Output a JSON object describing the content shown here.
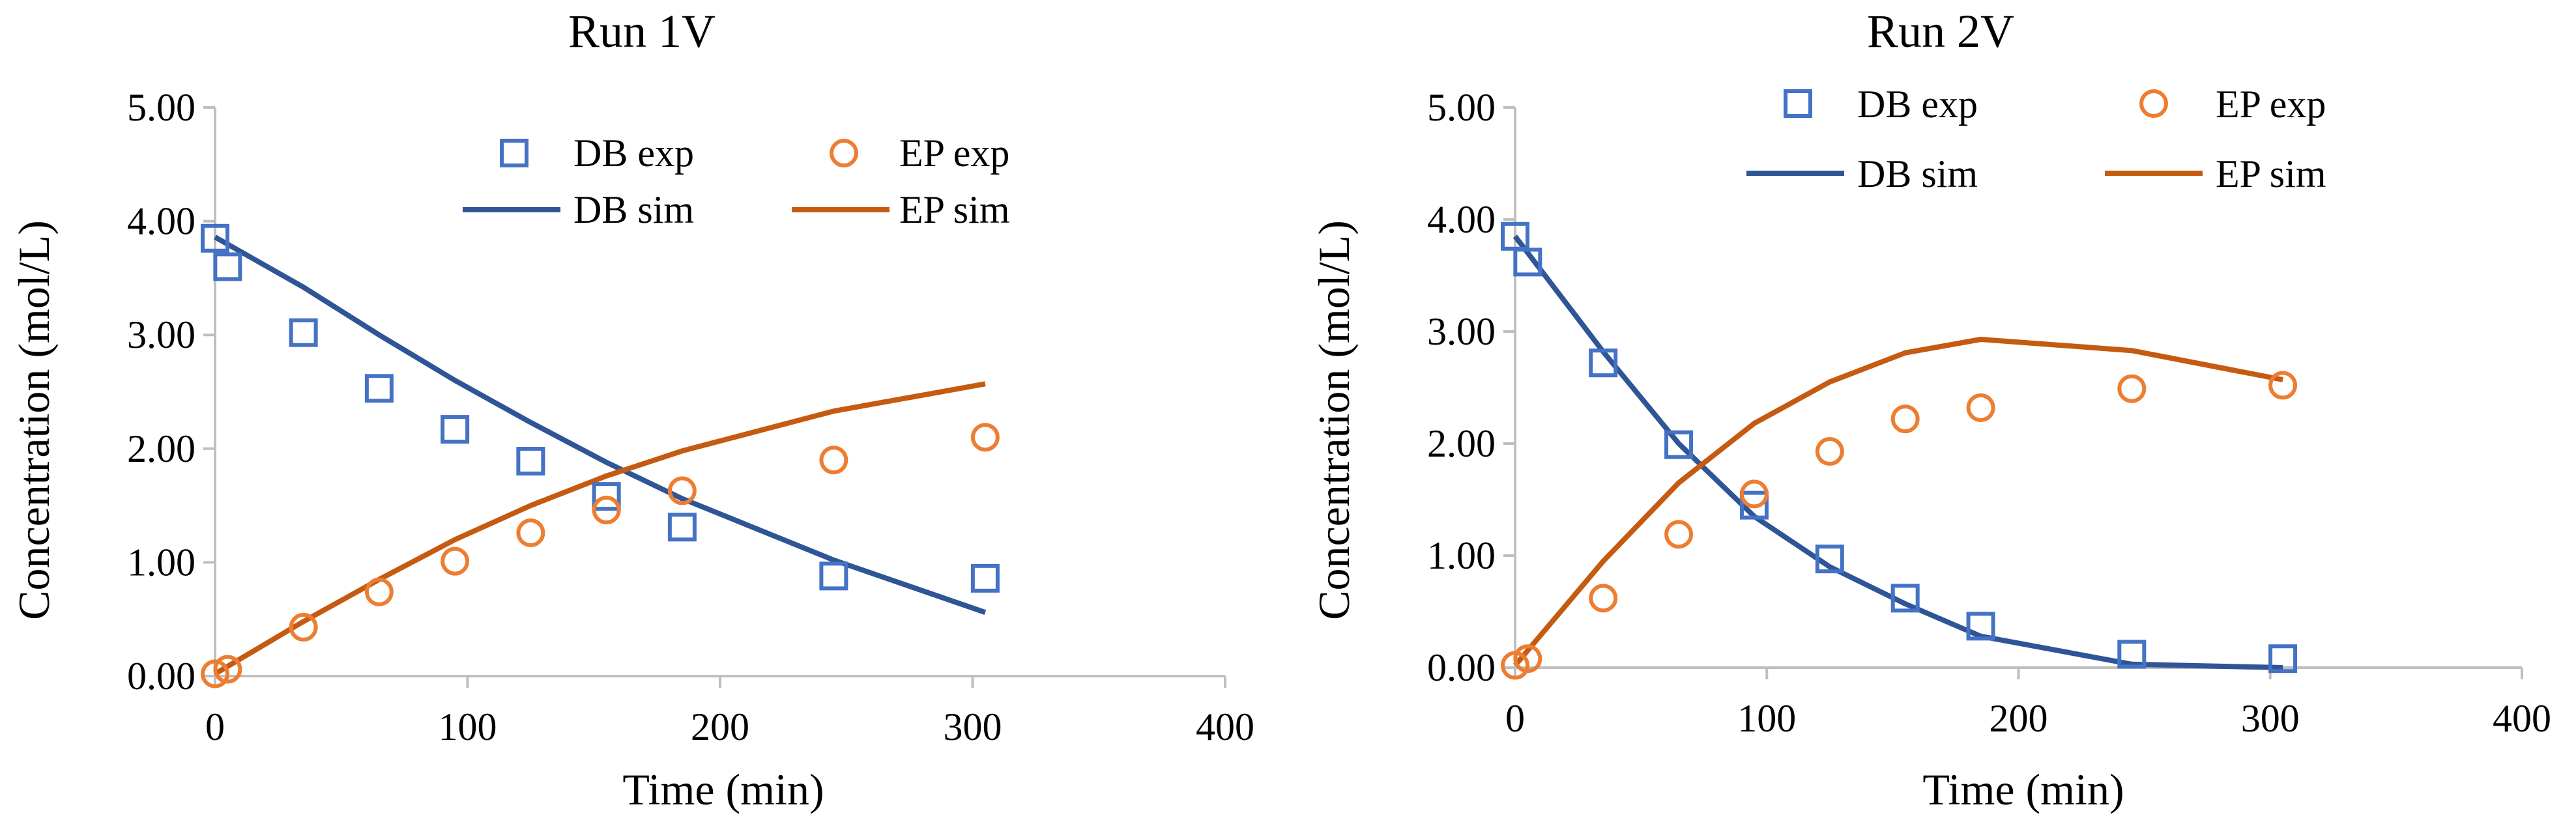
{
  "colors": {
    "db": "#4472C4",
    "db_line": "#2F5597",
    "ep": "#ED7D31",
    "ep_line": "#C55A11",
    "axis": "#BFBFBF"
  },
  "chart_data": [
    {
      "type": "scatter",
      "title": "Run 1V",
      "xlabel": "Time (min)",
      "ylabel": "Concentration (mol/L)",
      "xlim": [
        0,
        400
      ],
      "ylim": [
        0,
        5
      ],
      "xticks": [
        "0",
        "100",
        "200",
        "300",
        "400"
      ],
      "yticks": [
        "0.00",
        "1.00",
        "2.00",
        "3.00",
        "4.00",
        "5.00"
      ],
      "legend": {
        "db_exp": "DB exp",
        "ep_exp": "EP exp",
        "db_sim": "DB sim",
        "ep_sim": "EP sim"
      },
      "series": [
        {
          "name": "DB exp",
          "kind": "markers",
          "marker": "square",
          "x": [
            0,
            5,
            35,
            65,
            95,
            125,
            155,
            185,
            245,
            305
          ],
          "y": [
            3.85,
            3.6,
            3.02,
            2.53,
            2.17,
            1.89,
            1.58,
            1.31,
            0.88,
            0.86
          ]
        },
        {
          "name": "EP exp",
          "kind": "markers",
          "marker": "circle",
          "x": [
            0,
            5,
            35,
            65,
            95,
            125,
            155,
            185,
            245,
            305
          ],
          "y": [
            0.02,
            0.06,
            0.43,
            0.74,
            1.01,
            1.26,
            1.46,
            1.63,
            1.9,
            2.1
          ]
        },
        {
          "name": "DB sim",
          "kind": "line",
          "x": [
            0,
            35,
            65,
            95,
            125,
            155,
            185,
            245,
            305
          ],
          "y": [
            3.86,
            3.42,
            3.0,
            2.6,
            2.23,
            1.88,
            1.56,
            1.02,
            0.56
          ]
        },
        {
          "name": "EP sim",
          "kind": "line",
          "x": [
            0,
            35,
            65,
            95,
            125,
            155,
            185,
            245,
            305
          ],
          "y": [
            0.02,
            0.48,
            0.85,
            1.2,
            1.5,
            1.76,
            1.98,
            2.33,
            2.57
          ]
        }
      ]
    },
    {
      "type": "scatter",
      "title": "Run 2V",
      "xlabel": "Time (min)",
      "ylabel": "Concentration (mol/L)",
      "xlim": [
        0,
        400
      ],
      "ylim": [
        0,
        5
      ],
      "xticks": [
        "0",
        "100",
        "200",
        "300",
        "400"
      ],
      "yticks": [
        "0.00",
        "1.00",
        "2.00",
        "3.00",
        "4.00",
        "5.00"
      ],
      "legend": {
        "db_exp": "DB exp",
        "ep_exp": "EP exp",
        "db_sim": "DB sim",
        "ep_sim": "EP sim"
      },
      "series": [
        {
          "name": "DB exp",
          "kind": "markers",
          "marker": "square",
          "x": [
            0,
            5,
            35,
            65,
            95,
            125,
            155,
            185,
            245,
            305
          ],
          "y": [
            3.85,
            3.62,
            2.72,
            1.99,
            1.45,
            0.97,
            0.62,
            0.37,
            0.12,
            0.08
          ]
        },
        {
          "name": "EP exp",
          "kind": "markers",
          "marker": "circle",
          "x": [
            0,
            5,
            35,
            65,
            95,
            125,
            155,
            185,
            245,
            305
          ],
          "y": [
            0.02,
            0.08,
            0.62,
            1.19,
            1.55,
            1.93,
            2.22,
            2.32,
            2.49,
            2.52
          ]
        },
        {
          "name": "DB sim",
          "kind": "line",
          "x": [
            0,
            35,
            65,
            95,
            125,
            155,
            185,
            245,
            305
          ],
          "y": [
            3.85,
            2.82,
            2.0,
            1.35,
            0.9,
            0.57,
            0.28,
            0.03,
            0.0
          ]
        },
        {
          "name": "EP sim",
          "kind": "line",
          "x": [
            0,
            35,
            65,
            95,
            125,
            155,
            185,
            245,
            305
          ],
          "y": [
            0.02,
            0.95,
            1.65,
            2.18,
            2.55,
            2.81,
            2.93,
            2.83,
            2.57
          ]
        }
      ]
    }
  ]
}
